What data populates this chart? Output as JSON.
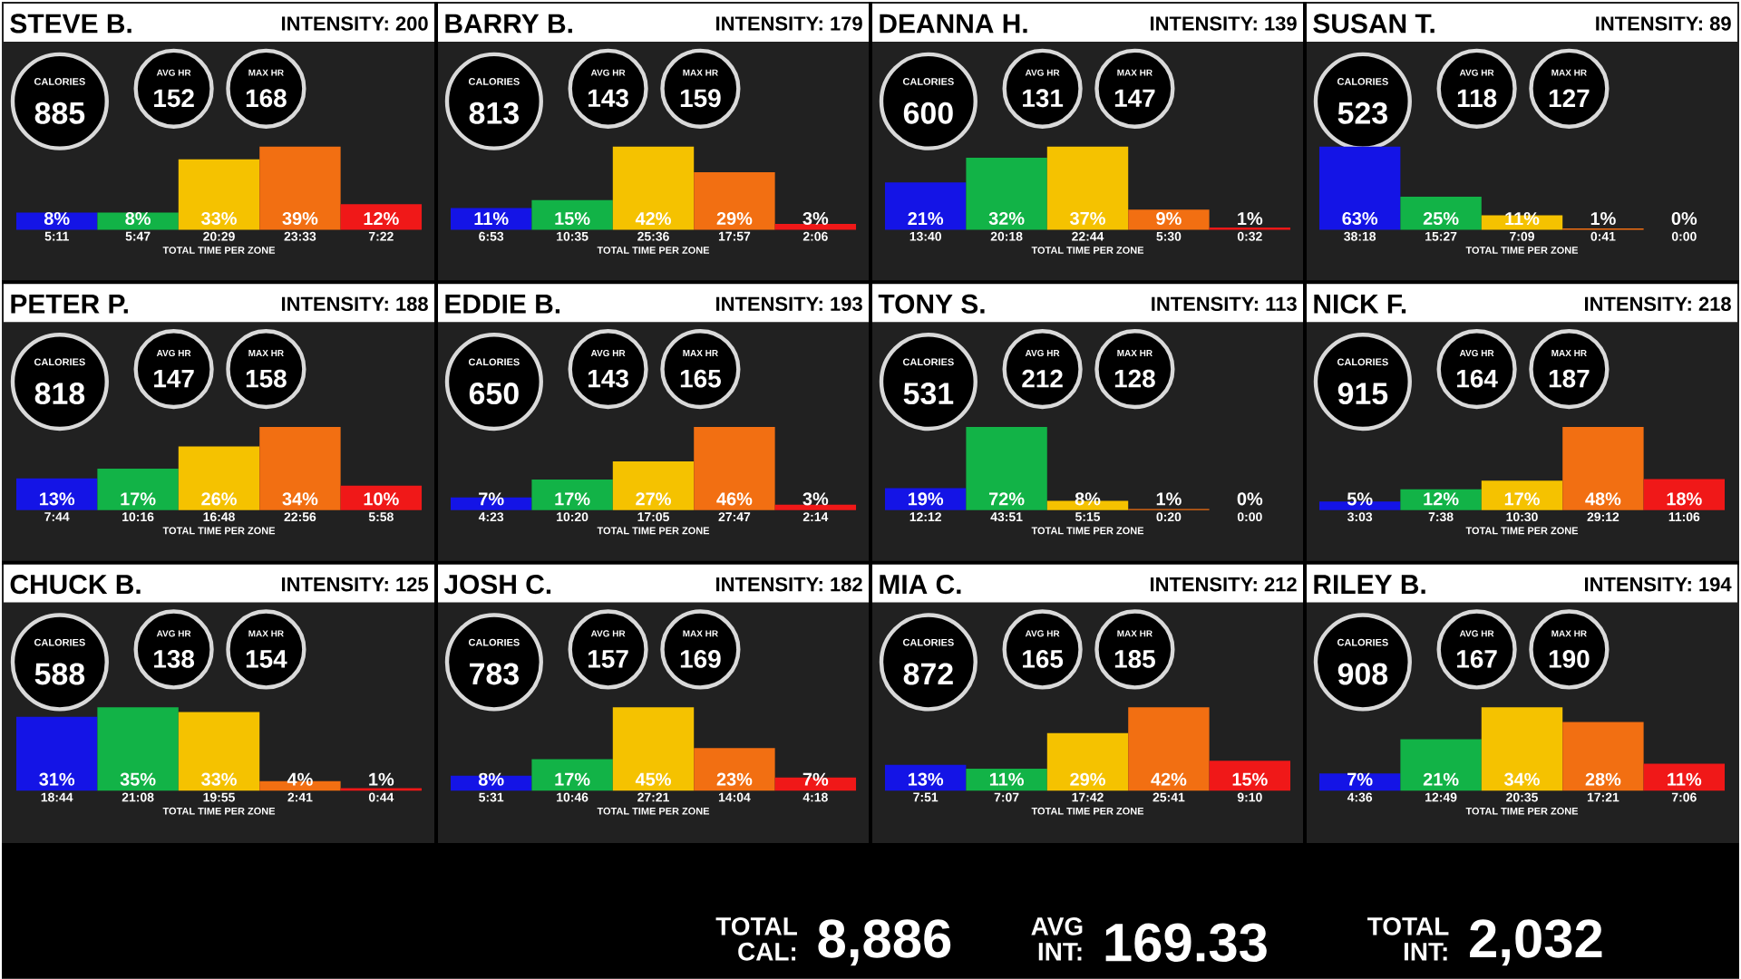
{
  "chart_data": [
    {
      "type": "bar",
      "title": "STEVE B.",
      "annotations": [
        "INTENSITY: 200",
        "CALORIES",
        "885",
        "AVG HR",
        "152",
        "MAX HR",
        "168"
      ],
      "xlabel": "TOTAL TIME PER ZONE",
      "categories": [
        "5:11",
        "5:47",
        "20:29",
        "23:33",
        "7:22"
      ],
      "values": [
        8,
        8,
        33,
        39,
        12
      ],
      "value_labels": [
        "8%",
        "8%",
        "33%",
        "39%",
        "12%"
      ],
      "colors": [
        "#1414e6",
        "#12b347",
        "#f5c200",
        "#f26f12",
        "#f01818"
      ]
    },
    {
      "type": "bar",
      "title": "BARRY B.",
      "annotations": [
        "INTENSITY: 179",
        "CALORIES",
        "813",
        "AVG HR",
        "143",
        "MAX HR",
        "159"
      ],
      "xlabel": "TOTAL TIME PER ZONE",
      "categories": [
        "6:53",
        "10:35",
        "25:36",
        "17:57",
        "2:06"
      ],
      "values": [
        11,
        15,
        42,
        29,
        3
      ],
      "value_labels": [
        "11%",
        "15%",
        "42%",
        "29%",
        "3%"
      ],
      "colors": [
        "#1414e6",
        "#12b347",
        "#f5c200",
        "#f26f12",
        "#f01818"
      ]
    },
    {
      "type": "bar",
      "title": "DEANNA H.",
      "annotations": [
        "INTENSITY: 139",
        "CALORIES",
        "600",
        "AVG HR",
        "131",
        "MAX HR",
        "147"
      ],
      "xlabel": "TOTAL TIME PER ZONE",
      "categories": [
        "13:40",
        "20:18",
        "22:44",
        "5:30",
        "0:32"
      ],
      "values": [
        21,
        32,
        37,
        9,
        1
      ],
      "value_labels": [
        "21%",
        "32%",
        "37%",
        "9%",
        "1%"
      ],
      "colors": [
        "#1414e6",
        "#12b347",
        "#f5c200",
        "#f26f12",
        "#f01818"
      ]
    },
    {
      "type": "bar",
      "title": "SUSAN T.",
      "annotations": [
        "INTENSITY: 89",
        "CALORIES",
        "523",
        "AVG HR",
        "118",
        "MAX HR",
        "127"
      ],
      "xlabel": "TOTAL TIME PER ZONE",
      "categories": [
        "38:18",
        "15:27",
        "7:09",
        "0:41",
        "0:00"
      ],
      "values": [
        63,
        25,
        11,
        1,
        0
      ],
      "value_labels": [
        "63%",
        "25%",
        "11%",
        "1%",
        "0%"
      ],
      "colors": [
        "#1414e6",
        "#12b347",
        "#f5c200",
        "#f26f12",
        "#f01818"
      ]
    },
    {
      "type": "bar",
      "title": "PETER P.",
      "annotations": [
        "INTENSITY: 188",
        "CALORIES",
        "818",
        "AVG HR",
        "147",
        "MAX HR",
        "158"
      ],
      "xlabel": "TOTAL TIME PER ZONE",
      "categories": [
        "7:44",
        "10:16",
        "16:48",
        "22:56",
        "5:58"
      ],
      "values": [
        13,
        17,
        26,
        34,
        10
      ],
      "value_labels": [
        "13%",
        "17%",
        "26%",
        "34%",
        "10%"
      ],
      "colors": [
        "#1414e6",
        "#12b347",
        "#f5c200",
        "#f26f12",
        "#f01818"
      ]
    },
    {
      "type": "bar",
      "title": "EDDIE B.",
      "annotations": [
        "INTENSITY: 193",
        "CALORIES",
        "650",
        "AVG HR",
        "143",
        "MAX HR",
        "165"
      ],
      "xlabel": "TOTAL TIME PER ZONE",
      "categories": [
        "4:23",
        "10:20",
        "17:05",
        "27:47",
        "2:14"
      ],
      "values": [
        7,
        17,
        27,
        46,
        3
      ],
      "value_labels": [
        "7%",
        "17%",
        "27%",
        "46%",
        "3%"
      ],
      "colors": [
        "#1414e6",
        "#12b347",
        "#f5c200",
        "#f26f12",
        "#f01818"
      ]
    },
    {
      "type": "bar",
      "title": "TONY S.",
      "annotations": [
        "INTENSITY: 113",
        "CALORIES",
        "531",
        "AVG HR",
        "212",
        "MAX HR",
        "128"
      ],
      "xlabel": "TOTAL TIME PER ZONE",
      "categories": [
        "12:12",
        "43:51",
        "5:15",
        "0:20",
        "0:00"
      ],
      "values": [
        19,
        72,
        8,
        1,
        0
      ],
      "value_labels": [
        "19%",
        "72%",
        "8%",
        "1%",
        "0%"
      ],
      "colors": [
        "#1414e6",
        "#12b347",
        "#f5c200",
        "#f26f12",
        "#f01818"
      ]
    },
    {
      "type": "bar",
      "title": "NICK F.",
      "annotations": [
        "INTENSITY: 218",
        "CALORIES",
        "915",
        "AVG HR",
        "164",
        "MAX HR",
        "187"
      ],
      "xlabel": "TOTAL TIME PER ZONE",
      "categories": [
        "3:03",
        "7:38",
        "10:30",
        "29:12",
        "11:06"
      ],
      "values": [
        5,
        12,
        17,
        48,
        18
      ],
      "value_labels": [
        "5%",
        "12%",
        "17%",
        "48%",
        "18%"
      ],
      "colors": [
        "#1414e6",
        "#12b347",
        "#f5c200",
        "#f26f12",
        "#f01818"
      ]
    },
    {
      "type": "bar",
      "title": "CHUCK B.",
      "annotations": [
        "INTENSITY: 125",
        "CALORIES",
        "588",
        "AVG HR",
        "138",
        "MAX HR",
        "154"
      ],
      "xlabel": "TOTAL TIME PER ZONE",
      "categories": [
        "18:44",
        "21:08",
        "19:55",
        "2:41",
        "0:44"
      ],
      "values": [
        31,
        35,
        33,
        4,
        1
      ],
      "value_labels": [
        "31%",
        "35%",
        "33%",
        "4%",
        "1%"
      ],
      "colors": [
        "#1414e6",
        "#12b347",
        "#f5c200",
        "#f26f12",
        "#f01818"
      ]
    },
    {
      "type": "bar",
      "title": "JOSH C.",
      "annotations": [
        "INTENSITY: 182",
        "CALORIES",
        "783",
        "AVG HR",
        "157",
        "MAX HR",
        "169"
      ],
      "xlabel": "TOTAL TIME PER ZONE",
      "categories": [
        "5:31",
        "10:46",
        "27:21",
        "14:04",
        "4:18"
      ],
      "values": [
        8,
        17,
        45,
        23,
        7
      ],
      "value_labels": [
        "8%",
        "17%",
        "45%",
        "23%",
        "7%"
      ],
      "colors": [
        "#1414e6",
        "#12b347",
        "#f5c200",
        "#f26f12",
        "#f01818"
      ]
    },
    {
      "type": "bar",
      "title": "MIA C.",
      "annotations": [
        "INTENSITY: 212",
        "CALORIES",
        "872",
        "AVG HR",
        "165",
        "MAX HR",
        "185"
      ],
      "xlabel": "TOTAL TIME PER ZONE",
      "categories": [
        "7:51",
        "7:07",
        "17:42",
        "25:41",
        "9:10"
      ],
      "values": [
        13,
        11,
        29,
        42,
        15
      ],
      "value_labels": [
        "13%",
        "11%",
        "29%",
        "42%",
        "15%"
      ],
      "colors": [
        "#1414e6",
        "#12b347",
        "#f5c200",
        "#f26f12",
        "#f01818"
      ]
    },
    {
      "type": "bar",
      "title": "RILEY B.",
      "annotations": [
        "INTENSITY: 194",
        "CALORIES",
        "908",
        "AVG HR",
        "167",
        "MAX HR",
        "190"
      ],
      "xlabel": "TOTAL TIME PER ZONE",
      "categories": [
        "4:36",
        "12:49",
        "20:35",
        "17:21",
        "7:06"
      ],
      "values": [
        7,
        21,
        34,
        28,
        11
      ],
      "value_labels": [
        "7%",
        "21%",
        "34%",
        "28%",
        "11%"
      ],
      "colors": [
        "#1414e6",
        "#12b347",
        "#f5c200",
        "#f26f12",
        "#f01818"
      ]
    },
    {
      "type": "other",
      "annotations": [
        "TOTAL",
        "CAL:",
        "8,886",
        "AVG",
        "INT:",
        "169.33",
        "TOTAL",
        "INT:",
        "2,032"
      ]
    }
  ]
}
